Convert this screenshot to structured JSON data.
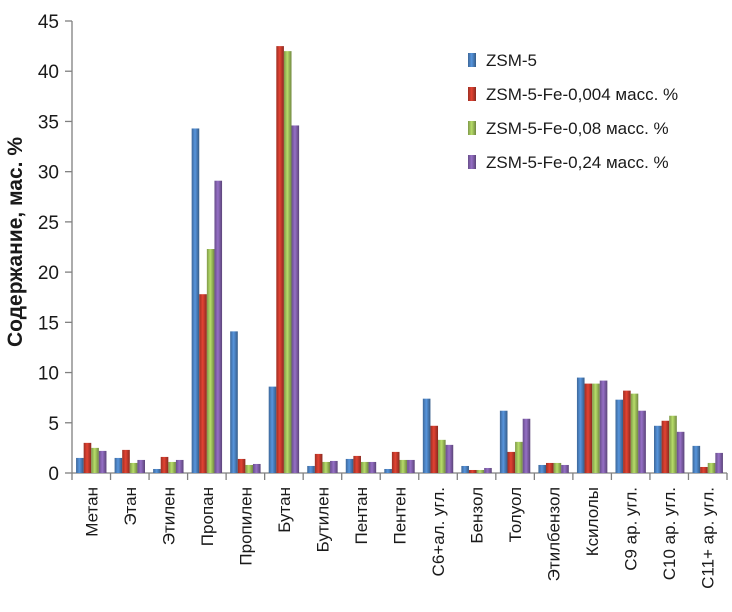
{
  "chart_data": {
    "type": "bar",
    "ylabel": "Содержание, мас. %",
    "xlabel": "",
    "title": "",
    "ylim": [
      0,
      45
    ],
    "yticks": [
      0,
      5,
      10,
      15,
      20,
      25,
      30,
      35,
      40,
      45
    ],
    "grid": false,
    "legend_position": "top-right",
    "categories": [
      "Метан",
      "Этан",
      "Этилен",
      "Пропан",
      "Пропилен",
      "Бутан",
      "Бутилен",
      "Пентан",
      "Пентен",
      "С6+ал. угл.",
      "Бензол",
      "Толуол",
      "Этилбензол",
      "Ксилолы",
      "С9 ар. угл.",
      "С10 ар. угл.",
      "С11+ ар. угл."
    ],
    "series": [
      {
        "name": "ZSM-5",
        "color": "#4a7ebb",
        "values": [
          1.5,
          1.5,
          0.4,
          34.3,
          14.1,
          8.6,
          0.7,
          1.4,
          0.4,
          7.4,
          0.7,
          6.2,
          0.8,
          9.5,
          7.3,
          4.7,
          2.7
        ]
      },
      {
        "name": "ZSM-5-Fe-0,004 масс. %",
        "color": "#c0392b",
        "values": [
          3.0,
          2.3,
          1.6,
          17.8,
          1.4,
          42.5,
          1.9,
          1.7,
          2.1,
          4.7,
          0.3,
          2.1,
          1.0,
          8.9,
          8.2,
          5.2,
          0.6
        ]
      },
      {
        "name": "ZSM-5-Fe-0,08 масс. %",
        "color": "#9bbb59",
        "values": [
          2.5,
          1.0,
          1.1,
          22.3,
          0.8,
          42.0,
          1.1,
          1.1,
          1.3,
          3.3,
          0.3,
          3.1,
          1.0,
          8.9,
          7.9,
          5.7,
          1.0
        ]
      },
      {
        "name": "ZSM-5-Fe-0,24 масс. %",
        "color": "#7f5fa8",
        "values": [
          2.2,
          1.3,
          1.3,
          29.1,
          0.9,
          34.6,
          1.2,
          1.1,
          1.3,
          2.8,
          0.5,
          5.4,
          0.8,
          9.2,
          6.2,
          4.1,
          2.0
        ]
      }
    ]
  }
}
